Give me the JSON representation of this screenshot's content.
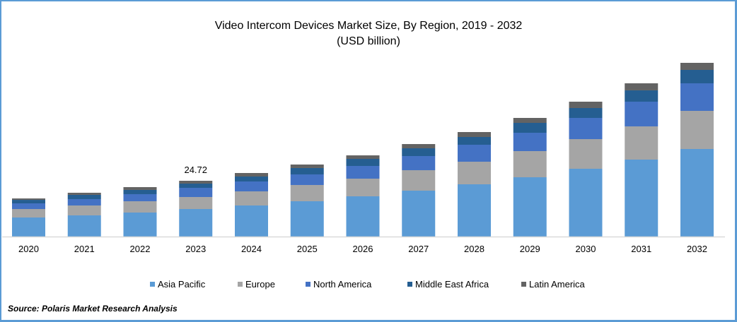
{
  "chart_data": {
    "type": "bar",
    "stacked": true,
    "title": "Video Intercom Devices Market Size, By Region, 2019 - 2032",
    "subtitle": "(USD billion)",
    "xlabel": "",
    "ylabel": "",
    "ylim": [
      0,
      80
    ],
    "grid": false,
    "legend_position": "bottom",
    "categories": [
      "2020",
      "2021",
      "2022",
      "2023",
      "2024",
      "2025",
      "2026",
      "2027",
      "2028",
      "2029",
      "2030",
      "2031",
      "2032"
    ],
    "series": [
      {
        "name": "Asia Pacific",
        "color": "#5b9bd5",
        "values": [
          8.45,
          9.39,
          10.64,
          12.2,
          13.77,
          15.65,
          17.84,
          20.34,
          23.16,
          26.28,
          30.04,
          34.11,
          38.8
        ]
      },
      {
        "name": "Europe",
        "color": "#a5a5a5",
        "values": [
          3.75,
          4.38,
          5.01,
          5.32,
          6.26,
          7.2,
          7.82,
          9.07,
          10.01,
          11.58,
          13.14,
          14.71,
          16.9
        ]
      },
      {
        "name": "North America",
        "color": "#4472c4",
        "values": [
          2.5,
          2.82,
          3.13,
          4.07,
          4.38,
          4.69,
          5.63,
          6.26,
          7.51,
          8.14,
          9.39,
          10.95,
          12.2
        ]
      },
      {
        "name": "Middle East Africa",
        "color": "#255e91",
        "values": [
          1.56,
          1.88,
          1.88,
          1.88,
          2.19,
          2.82,
          3.13,
          3.44,
          3.44,
          4.38,
          4.38,
          5.01,
          5.95
        ]
      },
      {
        "name": "Latin America",
        "color": "#636363",
        "values": [
          0.63,
          0.94,
          1.25,
          1.25,
          1.56,
          1.56,
          1.56,
          1.88,
          2.19,
          2.19,
          2.82,
          3.13,
          3.13
        ]
      }
    ],
    "annotations": [
      {
        "category": "2023",
        "text": "24.72"
      }
    ]
  },
  "source": "Source: Polaris  Market Research Analysis",
  "colors": {
    "frame": "#5b9bd5",
    "axis": "#d9d9d9"
  }
}
